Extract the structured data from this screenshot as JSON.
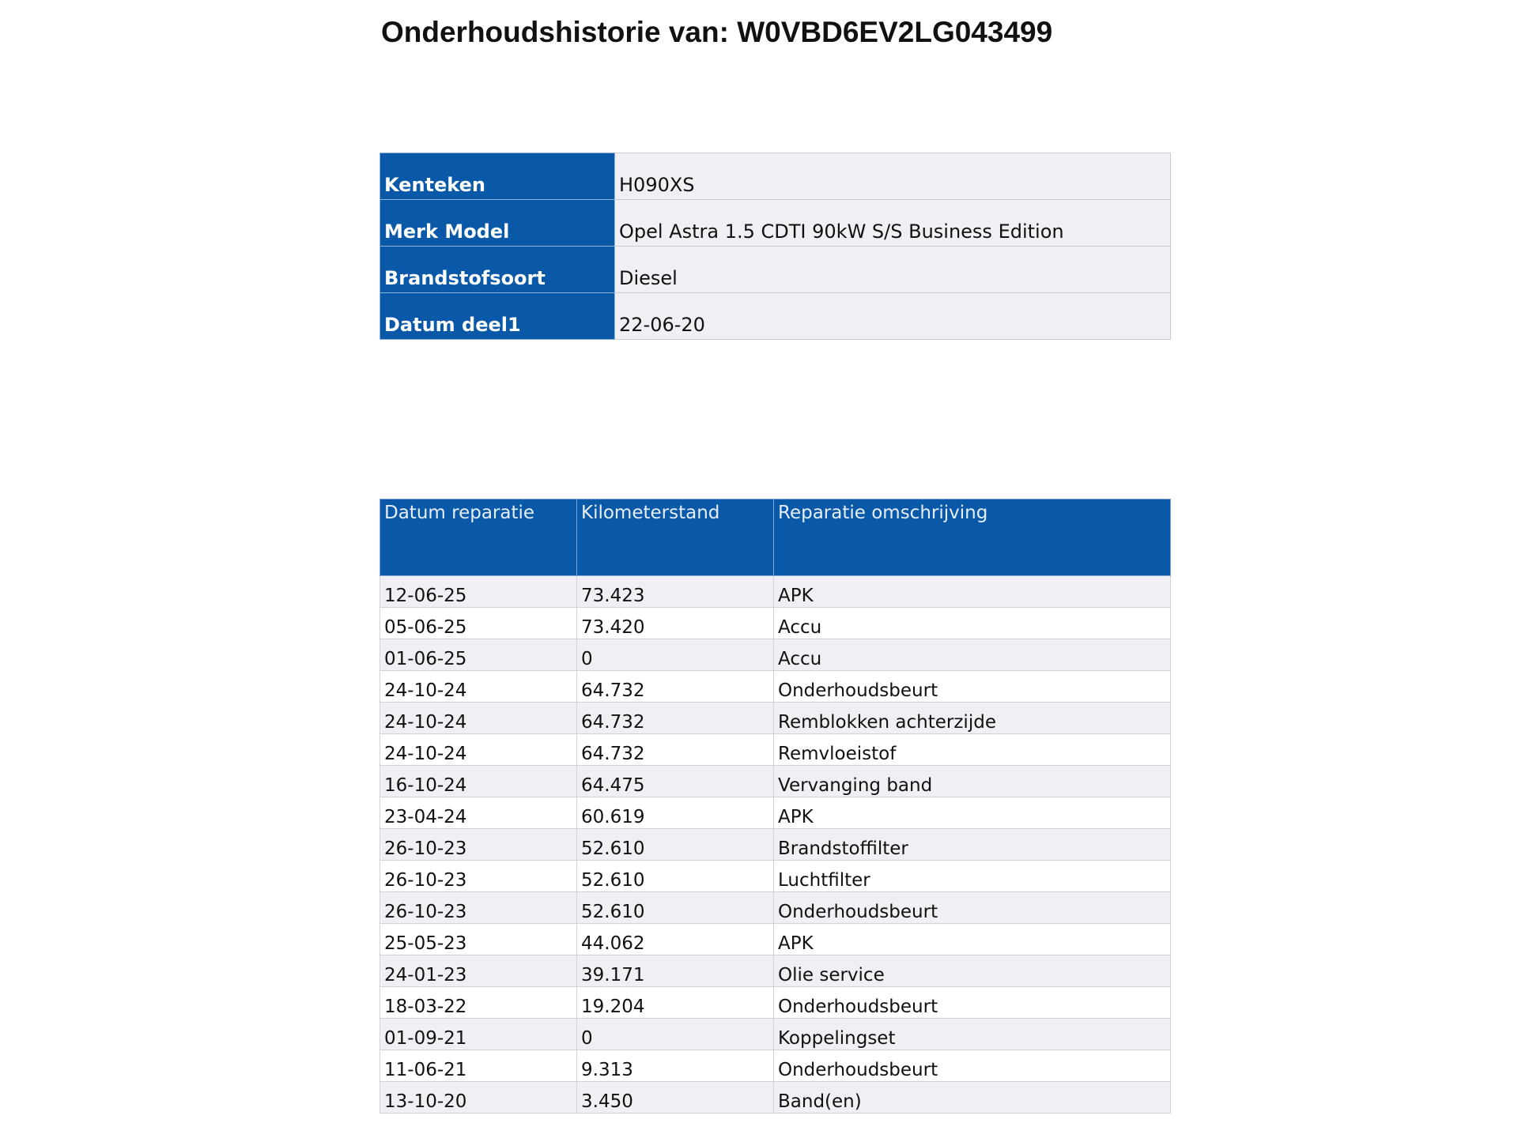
{
  "title": "Onderhoudshistorie van: W0VBD6EV2LG043499",
  "vehicle": [
    {
      "label": "Kenteken",
      "value": "H090XS"
    },
    {
      "label": "Merk Model",
      "value": "Opel Astra 1.5 CDTI 90kW S/S Business Edition"
    },
    {
      "label": "Brandstofsoort",
      "value": "Diesel"
    },
    {
      "label": "Datum deel1",
      "value": "22-06-20"
    }
  ],
  "history": {
    "headers": [
      "Datum reparatie",
      "Kilometerstand",
      "Reparatie omschrijving"
    ],
    "rows": [
      [
        "12-06-25",
        "73.423",
        "APK"
      ],
      [
        "05-06-25",
        "73.420",
        "Accu"
      ],
      [
        "01-06-25",
        "0",
        "Accu"
      ],
      [
        "24-10-24",
        "64.732",
        "Onderhoudsbeurt"
      ],
      [
        "24-10-24",
        "64.732",
        "Remblokken achterzijde"
      ],
      [
        "24-10-24",
        "64.732",
        "Remvloeistof"
      ],
      [
        "16-10-24",
        "64.475",
        "Vervanging band"
      ],
      [
        "23-04-24",
        "60.619",
        "APK"
      ],
      [
        "26-10-23",
        "52.610",
        "Brandstoffilter"
      ],
      [
        "26-10-23",
        "52.610",
        "Luchtfilter"
      ],
      [
        "26-10-23",
        "52.610",
        "Onderhoudsbeurt"
      ],
      [
        "25-05-23",
        "44.062",
        "APK"
      ],
      [
        "24-01-23",
        "39.171",
        "Olie service"
      ],
      [
        "18-03-22",
        "19.204",
        "Onderhoudsbeurt"
      ],
      [
        "01-09-21",
        "0",
        "Koppelingset"
      ],
      [
        "11-06-21",
        "9.313",
        "Onderhoudsbeurt"
      ],
      [
        "13-10-20",
        "3.450",
        "Band(en)"
      ]
    ]
  },
  "colors": {
    "header_blue": "#0a59a8",
    "row_alt": "#efeff4"
  }
}
